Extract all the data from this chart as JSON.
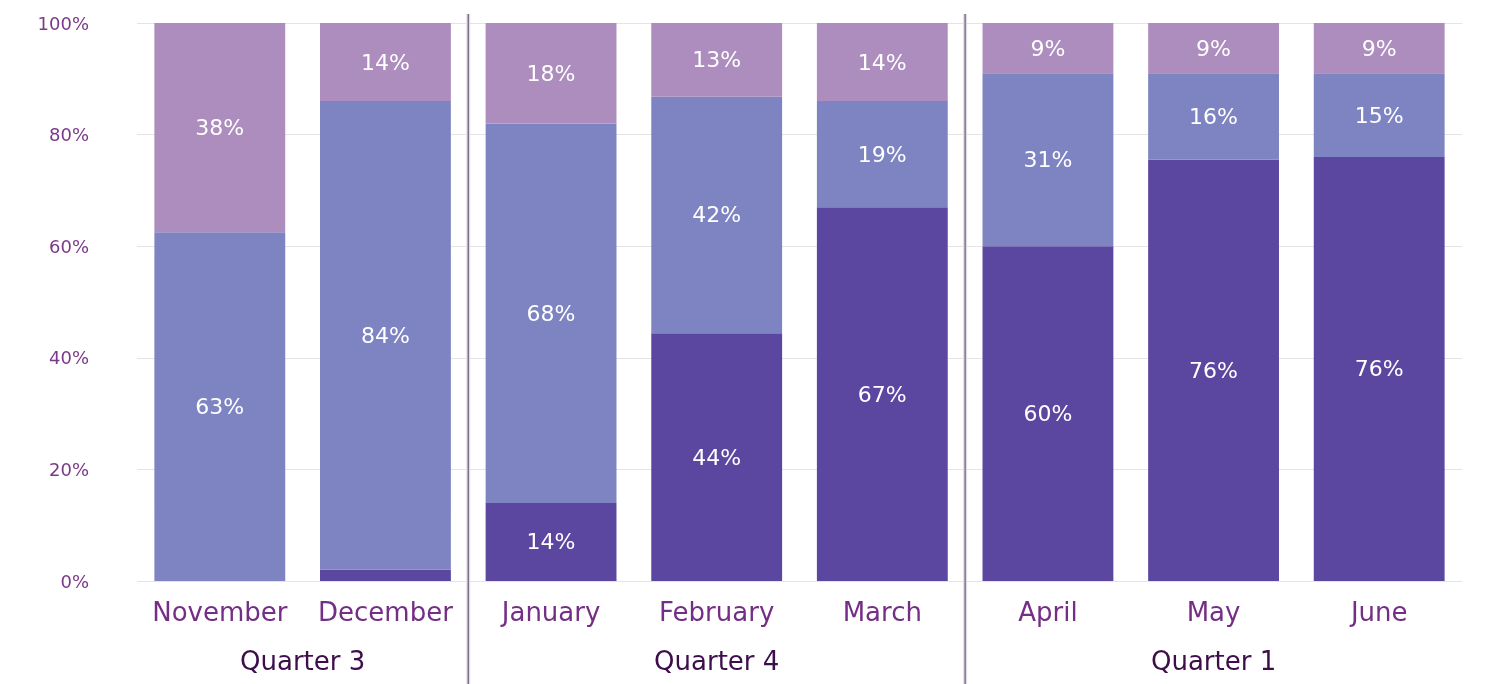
{
  "chart_data": {
    "type": "bar",
    "stacked": true,
    "categories": [
      "November",
      "December",
      "January",
      "February",
      "March",
      "April",
      "May",
      "June"
    ],
    "series": [
      {
        "color": "#5b479f",
        "values": [
          0,
          2,
          14,
          44.4,
          67,
          60,
          75.5,
          76
        ],
        "value_labels": [
          null,
          null,
          "14%",
          "44%",
          "67%",
          "60%",
          "76%",
          "76%"
        ]
      },
      {
        "color": "#7e84c2",
        "values": [
          62.5,
          84,
          68,
          42.4,
          19,
          31,
          15.5,
          15
        ],
        "value_labels": [
          "63%",
          "84%",
          "68%",
          "42%",
          "19%",
          "31%",
          "16%",
          "15%"
        ]
      },
      {
        "color": "#ad8dbd",
        "values": [
          37.5,
          14,
          18,
          13.2,
          14,
          9,
          9,
          9
        ],
        "value_labels": [
          "38%",
          "14%",
          "18%",
          "13%",
          "14%",
          "9%",
          "9%",
          "9%"
        ]
      }
    ],
    "ylim": [
      0,
      100
    ],
    "yticks": [
      {
        "value": 0,
        "label": "0%"
      },
      {
        "value": 20,
        "label": "20%"
      },
      {
        "value": 40,
        "label": "40%"
      },
      {
        "value": 60,
        "label": "60%"
      },
      {
        "value": 80,
        "label": "80%"
      },
      {
        "value": 100,
        "label": "100%"
      }
    ],
    "grid": "y",
    "annotations": [
      "Quarter 3",
      "Quarter 4",
      "Quarter 1"
    ]
  }
}
